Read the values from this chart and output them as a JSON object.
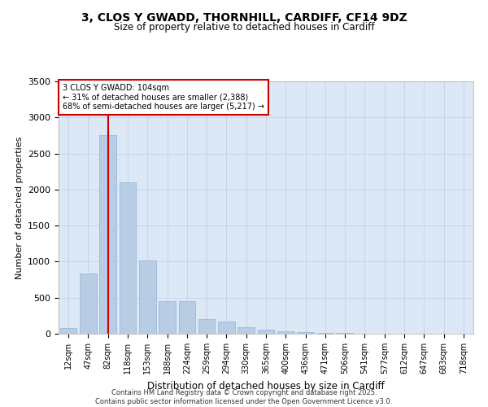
{
  "title_line1": "3, CLOS Y GWADD, THORNHILL, CARDIFF, CF14 9DZ",
  "title_line2": "Size of property relative to detached houses in Cardiff",
  "xlabel": "Distribution of detached houses by size in Cardiff",
  "ylabel": "Number of detached properties",
  "categories": [
    "12sqm",
    "47sqm",
    "82sqm",
    "118sqm",
    "153sqm",
    "188sqm",
    "224sqm",
    "259sqm",
    "294sqm",
    "330sqm",
    "365sqm",
    "400sqm",
    "436sqm",
    "471sqm",
    "506sqm",
    "541sqm",
    "577sqm",
    "612sqm",
    "647sqm",
    "683sqm",
    "718sqm"
  ],
  "values": [
    75,
    830,
    2750,
    2100,
    1020,
    450,
    450,
    200,
    170,
    90,
    55,
    35,
    20,
    12,
    8,
    5,
    3,
    2,
    1,
    1,
    0
  ],
  "bar_color": "#b8cce4",
  "bar_edge_color": "#8eb4d9",
  "vline_x_index": 2,
  "vline_color": "#cc0000",
  "annotation_title": "3 CLOS Y GWADD: 104sqm",
  "annotation_line2": "← 31% of detached houses are smaller (2,388)",
  "annotation_line3": "68% of semi-detached houses are larger (5,217) →",
  "annotation_box_color": "#ffffff",
  "annotation_box_edge": "#cc0000",
  "ylim": [
    0,
    3500
  ],
  "yticks": [
    0,
    500,
    1000,
    1500,
    2000,
    2500,
    3000,
    3500
  ],
  "grid_color": "#c8d4e8",
  "background_color": "#dce8f5",
  "footer_line1": "Contains HM Land Registry data © Crown copyright and database right 2025.",
  "footer_line2": "Contains public sector information licensed under the Open Government Licence v3.0."
}
